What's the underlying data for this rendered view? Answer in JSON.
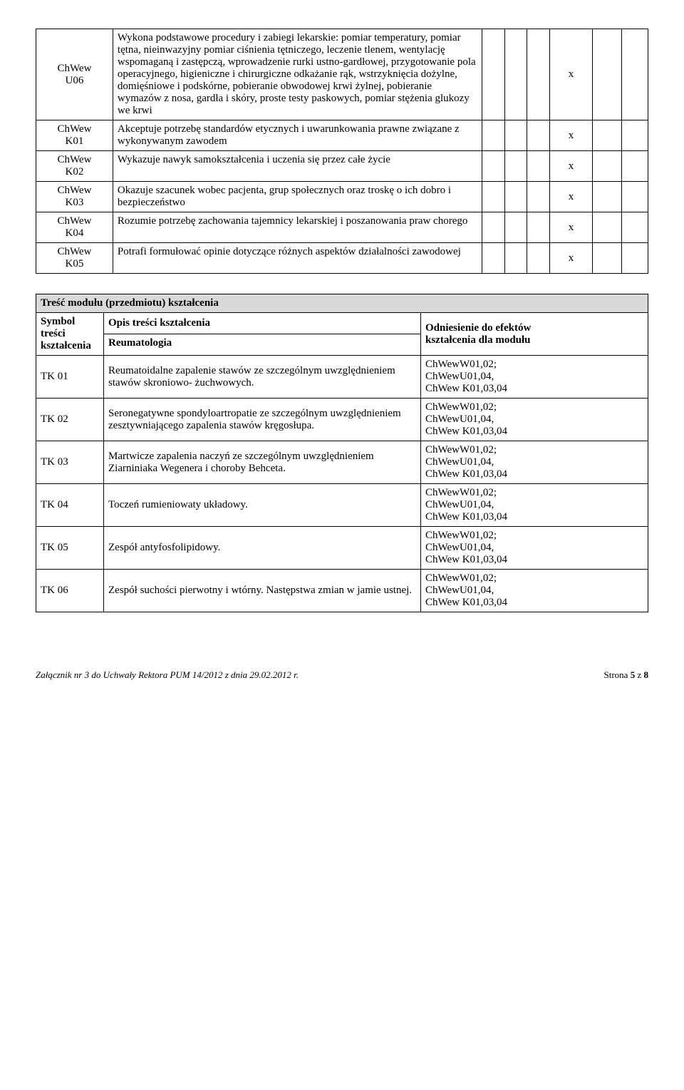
{
  "table1": {
    "rows": [
      {
        "code": "ChWew\nU06",
        "desc": "Wykona podstawowe procedury i zabiegi lekarskie: pomiar temperatury, pomiar tętna, nieinwazyjny pomiar ciśnienia tętniczego, leczenie tlenem, wentylację wspomaganą i zastępczą, wprowadzenie rurki ustno-gardłowej, przygotowanie pola operacyjnego, higieniczne i chirurgiczne odkażanie rąk, wstrzyknięcia dożylne, domięśniowe i podskórne, pobieranie obwodowej krwi żylnej, pobieranie wymazów z nosa, gardła i skóry, proste testy paskowych, pomiar stężenia glukozy we krwi",
        "x": "x"
      },
      {
        "code": "ChWew\nK01",
        "desc": "Akceptuje potrzebę standardów etycznych i uwarunkowania prawne związane z wykonywanym zawodem",
        "x": "x"
      },
      {
        "code": "ChWew\nK02",
        "desc": "Wykazuje nawyk samokształcenia i uczenia się przez całe życie",
        "x": "x"
      },
      {
        "code": "ChWew\nK03",
        "desc": "Okazuje szacunek wobec pacjenta, grup społecznych oraz troskę o ich dobro i bezpieczeństwo",
        "x": "x"
      },
      {
        "code": "ChWew\nK04",
        "desc": "Rozumie potrzebę zachowania tajemnicy lekarskiej i poszanowania praw chorego",
        "x": "x"
      },
      {
        "code": "ChWew\nK05",
        "desc": "Potrafi formułować opinie dotyczące różnych aspektów działalności zawodowej",
        "x": "x"
      }
    ]
  },
  "table2": {
    "header_title": "Treść modułu (przedmiotu) kształcenia",
    "col1_l1": "Symbol",
    "col1_l2": "treści",
    "col1_l3": "kształcenia",
    "col2": "Opis treści kształcenia",
    "col3_l1": "Odniesienie do efektów",
    "col3_l2": "kształcenia dla modułu",
    "sub": "Reumatologia",
    "rows": [
      {
        "tk": "TK 01",
        "opis": "Reumatoidalne zapalenie stawów ze szczególnym uwzględnieniem stawów skroniowo- żuchwowych.",
        "ref": "ChWewW01,02;\nChWewU01,04,\nChWew K01,03,04"
      },
      {
        "tk": "TK 02",
        "opis": "Seronegatywne spondyloartropatie ze szczególnym uwzględnieniem zesztywniającego zapalenia stawów kręgosłupa.",
        "ref": "ChWewW01,02;\nChWewU01,04,\nChWew K01,03,04"
      },
      {
        "tk": "TK 03",
        "opis": "Martwicze zapalenia naczyń ze szczególnym uwzględnieniem Ziarniniaka Wegenera i choroby Behceta.",
        "ref": "ChWewW01,02;\nChWewU01,04,\nChWew K01,03,04"
      },
      {
        "tk": "TK 04",
        "opis": "Toczeń rumieniowaty układowy.",
        "ref": "ChWewW01,02;\nChWewU01,04,\nChWew K01,03,04"
      },
      {
        "tk": "TK 05",
        "opis": "Zespół antyfosfolipidowy.",
        "ref": "ChWewW01,02;\nChWewU01,04,\nChWew K01,03,04"
      },
      {
        "tk": "TK 06",
        "opis": "Zespół suchości pierwotny i wtórny. Następstwa zmian w jamie ustnej.",
        "ref": "ChWewW01,02;\nChWewU01,04,\nChWew K01,03,04"
      }
    ]
  },
  "footer": {
    "left": "Załącznik nr 3 do Uchwały  Rektora PUM 14/2012 z dnia 29.02.2012 r.",
    "right": "Strona 5 z 8"
  }
}
